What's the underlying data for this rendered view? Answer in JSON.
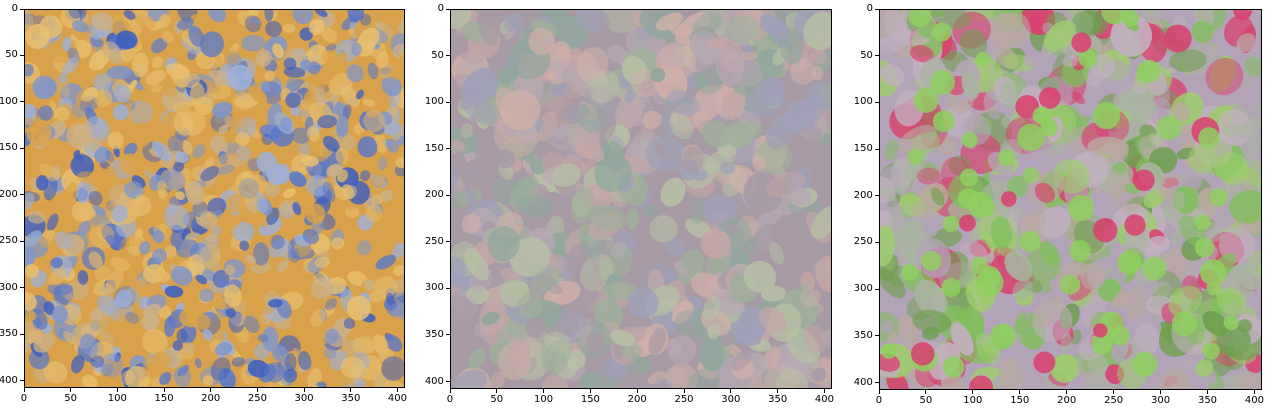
{
  "figure": {
    "panels": [
      {
        "name": "panel-1",
        "palette": [
          "#d9a24a",
          "#e4b86a",
          "#5a78c8",
          "#3f5fbf",
          "#9db0d8",
          "#c9b08a",
          "#e8c070",
          "#7f95c9"
        ],
        "xticks": [
          "0",
          "50",
          "100",
          "150",
          "200",
          "250",
          "300",
          "350",
          "400"
        ],
        "yticks": [
          "0",
          "50",
          "100",
          "150",
          "200",
          "250",
          "300",
          "350",
          "400"
        ]
      },
      {
        "name": "panel-2",
        "palette": [
          "#a89aa5",
          "#b8a9b3",
          "#9fb09a",
          "#c4a6a6",
          "#8fa79c",
          "#b7c0a4",
          "#a0a0b8",
          "#d0b0a8"
        ],
        "xticks": [
          "0",
          "50",
          "100",
          "150",
          "200",
          "250",
          "300",
          "350",
          "400"
        ],
        "yticks": [
          "0",
          "50",
          "100",
          "150",
          "200",
          "250",
          "300",
          "350",
          "400"
        ]
      },
      {
        "name": "panel-3",
        "palette": [
          "#b3a3b8",
          "#c2b0c0",
          "#7fbf5a",
          "#9ccd6a",
          "#d9406e",
          "#b9a8a0",
          "#6f9f4f",
          "#a8b4a0"
        ],
        "xticks": [
          "0",
          "50",
          "100",
          "150",
          "200",
          "250",
          "300",
          "350",
          "400"
        ],
        "yticks": [
          "0",
          "50",
          "100",
          "150",
          "200",
          "250",
          "300",
          "350",
          "400"
        ]
      }
    ]
  }
}
